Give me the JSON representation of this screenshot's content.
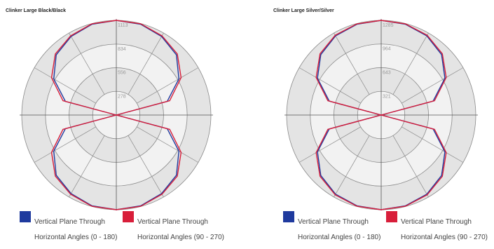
{
  "chart_data": [
    {
      "type": "polar",
      "title": "Clinker Large Black/Black",
      "rings": [
        278,
        556,
        834,
        1113
      ],
      "ring_labels": [
        "278",
        "556",
        "834",
        "1113"
      ],
      "rmax": 1113,
      "angles_deg": [
        0,
        15,
        30,
        45,
        60,
        75,
        90,
        105,
        120,
        135,
        150,
        165,
        180,
        195,
        210,
        225,
        240,
        255,
        270,
        285,
        300,
        315,
        330,
        345
      ],
      "series": [
        {
          "name": "Vertical Plane Through Horizontal Angles (0 - 180)",
          "color": "#1f3a9e",
          "values": [
            1113,
            1105,
            1066,
            1000,
            850,
            620,
            0,
            620,
            850,
            1000,
            1066,
            1105,
            1113,
            1105,
            1066,
            1000,
            850,
            620,
            0,
            620,
            850,
            1000,
            1066,
            1105
          ]
        },
        {
          "name": "Horizontal Angles (90 - 270)",
          "color": "#d81e3a",
          "values": [
            1113,
            1110,
            1075,
            1015,
            880,
            650,
            0,
            650,
            880,
            1015,
            1075,
            1110,
            1113,
            1110,
            1075,
            1015,
            880,
            650,
            0,
            650,
            880,
            1015,
            1075,
            1110
          ]
        }
      ]
    },
    {
      "type": "polar",
      "title": "Clinker Large Silver/Silver",
      "rings": [
        321,
        643,
        964,
        1285
      ],
      "ring_labels": [
        "321",
        "643",
        "964",
        "1285"
      ],
      "rmax": 1285,
      "angles_deg": [
        0,
        15,
        30,
        45,
        60,
        75,
        90,
        105,
        120,
        135,
        150,
        165,
        180,
        195,
        210,
        225,
        240,
        255,
        270,
        285,
        300,
        315,
        330,
        345
      ],
      "series": [
        {
          "name": "Vertical Plane Through Horizontal Angles (0 - 180)",
          "color": "#1f3a9e",
          "values": [
            1285,
            1275,
            1240,
            1160,
            1000,
            730,
            0,
            730,
            1000,
            1160,
            1240,
            1275,
            1285,
            1275,
            1240,
            1160,
            1000,
            730,
            0,
            730,
            1000,
            1160,
            1240,
            1275
          ]
        },
        {
          "name": "Horizontal Angles (90 - 270)",
          "color": "#d81e3a",
          "values": [
            1285,
            1280,
            1250,
            1175,
            1020,
            750,
            0,
            750,
            1020,
            1175,
            1250,
            1280,
            1285,
            1280,
            1250,
            1175,
            1020,
            750,
            0,
            750,
            1020,
            1175,
            1250,
            1280
          ]
        }
      ]
    }
  ],
  "legend": [
    {
      "line1": "Vertical Plane Through",
      "line2": "Horizontal Angles (0 - 180)",
      "color": "#1f3a9e"
    },
    {
      "line1": "Vertical Plane Through",
      "line2": "Horizontal Angles (90 - 270)",
      "color": "#d81e3a"
    }
  ]
}
